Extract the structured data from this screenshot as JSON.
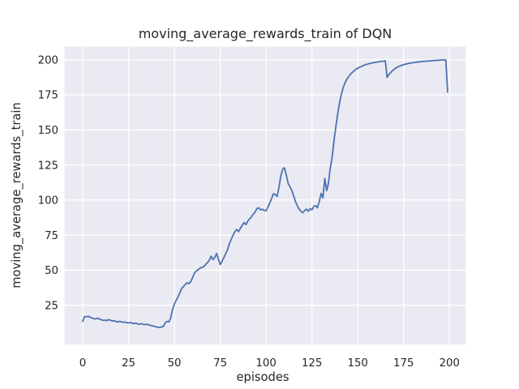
{
  "chart_data": {
    "type": "line",
    "title": "moving_average_rewards_train of DQN",
    "xlabel": "episodes",
    "ylabel": "moving_average_rewards_train",
    "xticks": [
      0,
      25,
      50,
      75,
      100,
      125,
      150,
      175,
      200
    ],
    "yticks": [
      25,
      50,
      75,
      100,
      125,
      150,
      175,
      200
    ],
    "xlim": [
      -9.95,
      208.95
    ],
    "ylim": [
      -2.9,
      209.4
    ],
    "grid": true,
    "legend_position": "none",
    "style": {
      "line_color": "#4C72B0",
      "axes_background": "#EAEAF2",
      "grid_color": "#FFFFFF",
      "text_color": "#262626",
      "figure_background": "#FFFFFF",
      "line_width": 1.8
    },
    "series": [
      {
        "name": "moving_average_rewards_train",
        "x_note": "x = episode index, 0 to 199 step 1",
        "x0": 0,
        "dx": 1,
        "y": [
          13.5,
          17.0,
          16.8,
          17.2,
          16.5,
          16.0,
          15.5,
          15.2,
          15.8,
          15.3,
          14.8,
          14.2,
          14.5,
          14.0,
          14.8,
          14.4,
          13.8,
          14.1,
          13.5,
          13.0,
          13.6,
          13.2,
          12.8,
          13.1,
          12.6,
          12.4,
          12.7,
          12.2,
          12.0,
          12.3,
          11.8,
          11.5,
          11.9,
          11.4,
          11.2,
          11.5,
          11.0,
          10.7,
          10.4,
          10.0,
          9.7,
          9.4,
          9.2,
          9.6,
          10.0,
          12.5,
          13.5,
          13.2,
          16.0,
          22.0,
          26.0,
          28.5,
          31.0,
          34.0,
          37.0,
          38.5,
          40.0,
          41.0,
          40.5,
          42.0,
          45.0,
          48.0,
          49.5,
          50.5,
          51.5,
          52.0,
          52.5,
          54.0,
          55.5,
          57.0,
          60.0,
          57.5,
          59.0,
          62.0,
          58.0,
          54.0,
          56.5,
          59.0,
          62.0,
          64.5,
          69.0,
          72.0,
          75.0,
          77.5,
          79.0,
          77.5,
          80.0,
          82.0,
          84.0,
          82.5,
          85.0,
          86.5,
          88.0,
          90.0,
          91.5,
          94.0,
          94.5,
          93.0,
          93.5,
          92.5,
          92.5,
          95.0,
          98.0,
          101.0,
          104.5,
          104.0,
          102.5,
          109.0,
          117.0,
          122.0,
          123.0,
          118.0,
          112.0,
          109.5,
          107.0,
          103.0,
          99.0,
          96.0,
          93.5,
          92.0,
          91.0,
          92.5,
          93.5,
          92.0,
          94.0,
          93.0,
          95.5,
          96.0,
          94.5,
          99.0,
          104.8,
          101.5,
          115.4,
          106.7,
          112.0,
          123.0,
          130.0,
          142.0,
          152.0,
          161.0,
          169.0,
          175.0,
          180.0,
          183.5,
          186.0,
          188.0,
          189.7,
          191.0,
          192.2,
          193.2,
          194.0,
          194.7,
          195.3,
          195.9,
          196.4,
          196.8,
          197.2,
          197.5,
          197.8,
          198.1,
          198.3,
          198.5,
          198.7,
          198.9,
          199.0,
          199.2,
          187.5,
          189.5,
          191.0,
          192.3,
          193.4,
          194.3,
          195.0,
          195.6,
          196.1,
          196.5,
          196.9,
          197.2,
          197.5,
          197.7,
          197.9,
          198.1,
          198.3,
          198.5,
          198.6,
          198.8,
          198.9,
          199.0,
          199.1,
          199.2,
          199.3,
          199.4,
          199.5,
          199.6,
          199.7,
          199.8,
          199.9,
          200.0,
          199.8,
          177.0
        ]
      }
    ]
  }
}
